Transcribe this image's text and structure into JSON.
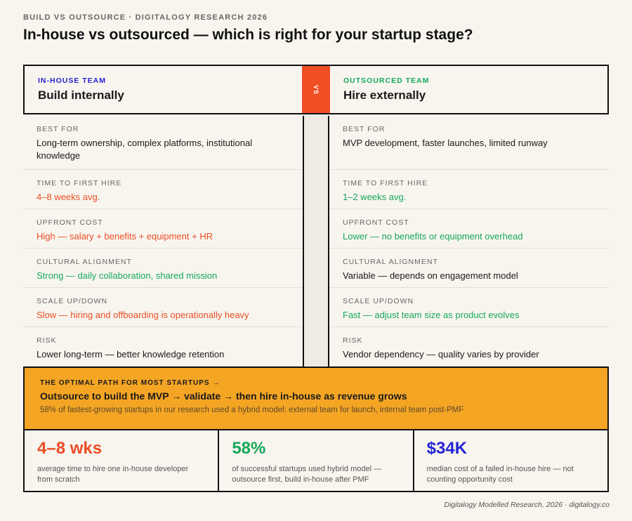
{
  "header": {
    "kicker": "BUILD VS OUTSOURCE · DIGITALOGY RESEARCH 2026",
    "title": "In-house vs outsourced — which is right for your startup stage?"
  },
  "comparison": {
    "left": {
      "tag": "IN-HOUSE TEAM",
      "tag_color": "#2323d4",
      "title": "Build internally"
    },
    "divider": "VS",
    "right": {
      "tag": "OUTSOURCED TEAM",
      "tag_color": "#16a85a",
      "title": "Hire externally"
    },
    "rows": [
      {
        "label": "BEST FOR",
        "left": {
          "text": "Long-term ownership, complex platforms, institutional knowledge",
          "color": "#1a1a1a"
        },
        "right": {
          "text": "MVP development, faster launches, limited runway",
          "color": "#1a1a1a"
        }
      },
      {
        "label": "TIME TO FIRST HIRE",
        "left": {
          "text": "4–8 weeks avg.",
          "color": "#ea4e25"
        },
        "right": {
          "text": "1–2 weeks avg.",
          "color": "#16a85a"
        }
      },
      {
        "label": "UPFRONT COST",
        "left": {
          "text": "High — salary + benefits + equipment + HR",
          "color": "#ea4e25"
        },
        "right": {
          "text": "Lower — no benefits or equipment overhead",
          "color": "#16a85a"
        }
      },
      {
        "label": "CULTURAL ALIGNMENT",
        "left": {
          "text": "Strong — daily collaboration, shared mission",
          "color": "#16a85a"
        },
        "right": {
          "text": "Variable — depends on engagement model",
          "color": "#1a1a1a"
        }
      },
      {
        "label": "SCALE UP/DOWN",
        "left": {
          "text": "Slow — hiring and offboarding is operationally heavy",
          "color": "#ea4e25"
        },
        "right": {
          "text": "Fast — adjust team size as product evolves",
          "color": "#16a85a"
        }
      },
      {
        "label": "RISK",
        "left": {
          "text": "Lower long-term — better knowledge retention",
          "color": "#1a1a1a"
        },
        "right": {
          "text": "Vendor dependency — quality varies by provider",
          "color": "#1a1a1a"
        }
      }
    ]
  },
  "callout": {
    "kicker": "THE OPTIMAL PATH FOR MOST STARTUPS →",
    "title": "Outsource to build the MVP → validate → then hire in-house as revenue grows",
    "note": "58% of fastest-growing startups in our research used a hybrid model: external team for launch, internal team post-PMF"
  },
  "stats": [
    {
      "value": "4–8 wks",
      "color": "#ea4e25",
      "text": "average time to hire one in-house developer from scratch"
    },
    {
      "value": "58%",
      "color": "#16a85a",
      "text": "of successful startups used hybrid model — outsource first, build in-house after PMF"
    },
    {
      "value": "$34K",
      "color": "#2323d4",
      "text": "median cost of a failed in-house hire — not counting opportunity cost"
    }
  ],
  "footer": "Digitalogy Modelled Research, 2026 · digitalogy.co"
}
